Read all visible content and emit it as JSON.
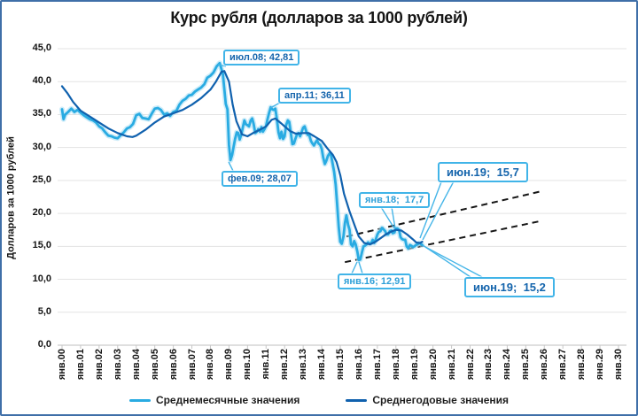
{
  "frame": {
    "border_color": "#3F6FA8"
  },
  "chart_data": {
    "type": "line",
    "title": "Курс рубля (долларов за 1000 рублей)",
    "ylabel": "Долларов за 1000 рублей",
    "xlabel": "",
    "ylim": [
      0,
      45
    ],
    "x_range_years": [
      "янв.00",
      "янв.30"
    ],
    "grid": "horizontal",
    "legend_position": "bottom",
    "y_tick_values": [
      0,
      5,
      10,
      15,
      20,
      25,
      30,
      35,
      40,
      45
    ],
    "y_tick_labels": [
      "0,0",
      "5,0",
      "10,0",
      "15,0",
      "20,0",
      "25,0",
      "30,0",
      "35,0",
      "40,0",
      "45,0"
    ],
    "x_tick_labels": [
      "янв.00",
      "янв.01",
      "янв.02",
      "янв.03",
      "янв.04",
      "янв.05",
      "янв.06",
      "янв.07",
      "янв.08",
      "янв.09",
      "янв.10",
      "янв.11",
      "янв.12",
      "янв.13",
      "янв.14",
      "янв.15",
      "янв.16",
      "янв.17",
      "янв.18",
      "янв.19",
      "янв.20",
      "янв.21",
      "янв.22",
      "янв.23",
      "янв.24",
      "янв.25",
      "янв.26",
      "янв.27",
      "янв.28",
      "янв.29",
      "янв.30"
    ],
    "series": [
      {
        "name": "Среднемесячные значения",
        "color": "#29ABE2",
        "halo_color": "#ABDFF5",
        "points": [
          [
            0.0,
            35.8
          ],
          [
            0.08,
            34.3
          ],
          [
            0.17,
            35.0
          ],
          [
            0.33,
            35.4
          ],
          [
            0.5,
            35.9
          ],
          [
            0.67,
            35.4
          ],
          [
            0.83,
            35.7
          ],
          [
            1.0,
            35.3
          ],
          [
            1.17,
            34.9
          ],
          [
            1.33,
            34.6
          ],
          [
            1.5,
            34.3
          ],
          [
            1.67,
            34.1
          ],
          [
            1.83,
            33.8
          ],
          [
            2.0,
            33.2
          ],
          [
            2.17,
            32.9
          ],
          [
            2.33,
            32.3
          ],
          [
            2.5,
            31.8
          ],
          [
            2.67,
            31.7
          ],
          [
            2.83,
            31.5
          ],
          [
            3.0,
            31.4
          ],
          [
            3.17,
            31.9
          ],
          [
            3.33,
            32.3
          ],
          [
            3.5,
            32.9
          ],
          [
            3.67,
            33.1
          ],
          [
            3.83,
            33.6
          ],
          [
            4.0,
            34.9
          ],
          [
            4.17,
            35.1
          ],
          [
            4.33,
            34.5
          ],
          [
            4.5,
            34.4
          ],
          [
            4.67,
            34.3
          ],
          [
            4.83,
            35.1
          ],
          [
            5.0,
            35.9
          ],
          [
            5.17,
            36.0
          ],
          [
            5.33,
            35.7
          ],
          [
            5.5,
            35.0
          ],
          [
            5.67,
            35.2
          ],
          [
            5.83,
            34.8
          ],
          [
            6.0,
            35.4
          ],
          [
            6.17,
            35.6
          ],
          [
            6.33,
            36.5
          ],
          [
            6.5,
            37.1
          ],
          [
            6.67,
            37.4
          ],
          [
            6.83,
            37.9
          ],
          [
            7.0,
            38.0
          ],
          [
            7.17,
            38.5
          ],
          [
            7.33,
            38.8
          ],
          [
            7.5,
            39.1
          ],
          [
            7.67,
            39.6
          ],
          [
            7.83,
            40.6
          ],
          [
            8.0,
            40.9
          ],
          [
            8.17,
            41.4
          ],
          [
            8.33,
            42.3
          ],
          [
            8.5,
            42.81
          ],
          [
            8.67,
            41.2
          ],
          [
            8.83,
            36.6
          ],
          [
            8.92,
            35.8
          ],
          [
            9.0,
            30.4
          ],
          [
            9.08,
            28.07
          ],
          [
            9.17,
            28.9
          ],
          [
            9.25,
            30.1
          ],
          [
            9.33,
            31.3
          ],
          [
            9.42,
            32.3
          ],
          [
            9.5,
            32.2
          ],
          [
            9.58,
            31.2
          ],
          [
            9.67,
            32.0
          ],
          [
            9.75,
            33.1
          ],
          [
            9.83,
            34.1
          ],
          [
            9.92,
            33.5
          ],
          [
            10.0,
            33.4
          ],
          [
            10.08,
            33.2
          ],
          [
            10.17,
            34.1
          ],
          [
            10.25,
            34.4
          ],
          [
            10.33,
            33.6
          ],
          [
            10.42,
            32.2
          ],
          [
            10.5,
            32.4
          ],
          [
            10.58,
            32.8
          ],
          [
            10.67,
            32.4
          ],
          [
            10.75,
            33.1
          ],
          [
            10.83,
            32.4
          ],
          [
            10.92,
            32.8
          ],
          [
            11.0,
            33.3
          ],
          [
            11.08,
            34.3
          ],
          [
            11.17,
            35.3
          ],
          [
            11.25,
            36.11
          ],
          [
            11.33,
            35.8
          ],
          [
            11.42,
            35.7
          ],
          [
            11.5,
            35.9
          ],
          [
            11.58,
            34.4
          ],
          [
            11.67,
            32.3
          ],
          [
            11.75,
            31.4
          ],
          [
            11.83,
            32.4
          ],
          [
            11.92,
            31.3
          ],
          [
            12.0,
            31.7
          ],
          [
            12.08,
            33.4
          ],
          [
            12.17,
            34.1
          ],
          [
            12.25,
            33.9
          ],
          [
            12.33,
            32.3
          ],
          [
            12.42,
            30.5
          ],
          [
            12.5,
            30.6
          ],
          [
            12.58,
            31.3
          ],
          [
            12.67,
            32.0
          ],
          [
            12.75,
            32.2
          ],
          [
            12.83,
            31.7
          ],
          [
            12.92,
            32.4
          ],
          [
            13.0,
            33.0
          ],
          [
            13.08,
            33.2
          ],
          [
            13.17,
            32.4
          ],
          [
            13.25,
            31.9
          ],
          [
            13.33,
            31.9
          ],
          [
            13.42,
            31.0
          ],
          [
            13.5,
            30.6
          ],
          [
            13.58,
            30.3
          ],
          [
            13.67,
            30.8
          ],
          [
            13.75,
            31.1
          ],
          [
            13.83,
            30.6
          ],
          [
            13.92,
            30.4
          ],
          [
            14.0,
            29.8
          ],
          [
            14.08,
            28.5
          ],
          [
            14.17,
            27.5
          ],
          [
            14.25,
            28.0
          ],
          [
            14.33,
            28.7
          ],
          [
            14.42,
            29.1
          ],
          [
            14.5,
            28.9
          ],
          [
            14.58,
            27.7
          ],
          [
            14.67,
            26.3
          ],
          [
            14.75,
            24.4
          ],
          [
            14.83,
            21.5
          ],
          [
            14.92,
            17.9
          ],
          [
            15.0,
            15.7
          ],
          [
            15.08,
            15.4
          ],
          [
            15.17,
            16.5
          ],
          [
            15.25,
            18.5
          ],
          [
            15.33,
            19.7
          ],
          [
            15.42,
            18.3
          ],
          [
            15.5,
            17.5
          ],
          [
            15.58,
            15.3
          ],
          [
            15.67,
            15.0
          ],
          [
            15.75,
            15.8
          ],
          [
            15.83,
            15.3
          ],
          [
            15.92,
            14.2
          ],
          [
            16.0,
            12.91
          ],
          [
            16.08,
            13.0
          ],
          [
            16.17,
            14.1
          ],
          [
            16.25,
            15.0
          ],
          [
            16.33,
            15.1
          ],
          [
            16.42,
            15.3
          ],
          [
            16.5,
            15.6
          ],
          [
            16.58,
            15.4
          ],
          [
            16.67,
            15.5
          ],
          [
            16.75,
            16.0
          ],
          [
            16.83,
            15.5
          ],
          [
            16.92,
            16.1
          ],
          [
            17.0,
            16.8
          ],
          [
            17.08,
            17.2
          ],
          [
            17.17,
            17.3
          ],
          [
            17.25,
            17.8
          ],
          [
            17.33,
            17.6
          ],
          [
            17.42,
            17.3
          ],
          [
            17.5,
            16.8
          ],
          [
            17.58,
            16.8
          ],
          [
            17.67,
            17.3
          ],
          [
            17.75,
            17.4
          ],
          [
            17.83,
            17.0
          ],
          [
            17.92,
            17.1
          ],
          [
            18.0,
            17.7
          ],
          [
            18.08,
            17.7
          ],
          [
            18.17,
            17.5
          ],
          [
            18.25,
            16.4
          ],
          [
            18.33,
            16.1
          ],
          [
            18.42,
            16.0
          ],
          [
            18.5,
            16.0
          ],
          [
            18.58,
            15.0
          ],
          [
            18.67,
            14.7
          ],
          [
            18.75,
            15.2
          ],
          [
            18.83,
            15.1
          ],
          [
            18.92,
            14.9
          ],
          [
            19.0,
            15.0
          ],
          [
            19.08,
            15.2
          ],
          [
            19.17,
            15.3
          ],
          [
            19.25,
            15.5
          ],
          [
            19.33,
            15.4
          ],
          [
            19.42,
            15.2
          ]
        ]
      },
      {
        "name": "Среднегодовые значения",
        "color": "#1061AE",
        "points": [
          [
            0.0,
            39.3
          ],
          [
            0.3,
            38.2
          ],
          [
            0.6,
            36.9
          ],
          [
            1.0,
            35.6
          ],
          [
            1.5,
            34.7
          ],
          [
            2.0,
            33.8
          ],
          [
            2.5,
            32.9
          ],
          [
            3.0,
            32.2
          ],
          [
            3.5,
            31.7
          ],
          [
            3.8,
            31.6
          ],
          [
            4.0,
            31.8
          ],
          [
            4.5,
            32.7
          ],
          [
            5.0,
            33.8
          ],
          [
            5.5,
            34.7
          ],
          [
            6.0,
            35.2
          ],
          [
            6.5,
            35.7
          ],
          [
            7.0,
            36.5
          ],
          [
            7.5,
            37.5
          ],
          [
            8.0,
            38.8
          ],
          [
            8.3,
            40.0
          ],
          [
            8.6,
            41.5
          ],
          [
            8.75,
            41.6
          ],
          [
            9.0,
            40.0
          ],
          [
            9.2,
            36.5
          ],
          [
            9.4,
            34.0
          ],
          [
            9.7,
            32.0
          ],
          [
            10.0,
            31.7
          ],
          [
            10.3,
            32.2
          ],
          [
            10.6,
            32.6
          ],
          [
            11.0,
            33.2
          ],
          [
            11.3,
            34.2
          ],
          [
            11.5,
            34.4
          ],
          [
            11.8,
            33.7
          ],
          [
            12.0,
            33.2
          ],
          [
            12.3,
            32.5
          ],
          [
            12.6,
            32.1
          ],
          [
            13.0,
            32.2
          ],
          [
            13.3,
            32.2
          ],
          [
            13.6,
            31.7
          ],
          [
            14.0,
            31.0
          ],
          [
            14.3,
            29.9
          ],
          [
            14.6,
            28.9
          ],
          [
            14.8,
            27.8
          ],
          [
            15.0,
            25.8
          ],
          [
            15.2,
            23.0
          ],
          [
            15.5,
            20.3
          ],
          [
            15.8,
            18.0
          ],
          [
            16.0,
            16.5
          ],
          [
            16.3,
            15.5
          ],
          [
            16.6,
            15.3
          ],
          [
            16.9,
            15.7
          ],
          [
            17.2,
            16.3
          ],
          [
            17.5,
            16.9
          ],
          [
            17.8,
            17.3
          ],
          [
            18.0,
            17.5
          ],
          [
            18.3,
            17.4
          ],
          [
            18.6,
            16.8
          ],
          [
            18.9,
            16.1
          ],
          [
            19.1,
            15.6
          ],
          [
            19.3,
            15.5
          ],
          [
            19.42,
            15.7
          ]
        ]
      }
    ],
    "trend_lines": [
      {
        "name": "upper-trend",
        "style": "dashed",
        "color": "#161616",
        "points": [
          [
            15.35,
            16.5
          ],
          [
            25.9,
            23.4
          ]
        ]
      },
      {
        "name": "lower-trend",
        "style": "dashed",
        "color": "#161616",
        "points": [
          [
            15.25,
            12.6
          ],
          [
            25.75,
            18.8
          ]
        ]
      }
    ],
    "annotations": [
      {
        "id": "jul08",
        "label": "июл.08; 42,81",
        "x": "июл.08",
        "year": 8.5,
        "value": 42.81,
        "size": "small",
        "variant": "navy"
      },
      {
        "id": "feb09",
        "label": "фев.09; 28,07",
        "x": "фев.09",
        "year": 9.08,
        "value": 28.07,
        "size": "small",
        "variant": "navy"
      },
      {
        "id": "apr11",
        "label": "апр.11; 36,11",
        "x": "апр.11",
        "year": 11.25,
        "value": 36.11,
        "size": "small",
        "variant": "navy"
      },
      {
        "id": "jan18",
        "label": "янв.18;  17,7",
        "x": "янв.18",
        "year": 18.0,
        "value": 17.7,
        "size": "small",
        "variant": "light"
      },
      {
        "id": "jan16",
        "label": "янв.16; 12,91",
        "x": "янв.16",
        "year": 16.0,
        "value": 12.91,
        "size": "small",
        "variant": "light"
      },
      {
        "id": "jun19a",
        "label": "июн.19;  15,7",
        "x": "июн.19",
        "year": 19.42,
        "value": 15.7,
        "size": "large",
        "variant": "navy"
      },
      {
        "id": "jun19b",
        "label": "июн.19;  15,2",
        "x": "июн.19",
        "year": 19.42,
        "value": 15.2,
        "size": "large",
        "variant": "navy"
      }
    ],
    "legend": [
      {
        "label": "Среднемесячные значения",
        "color": "#29ABE2"
      },
      {
        "label": "Среднегодовые значения",
        "color": "#1061AE"
      }
    ]
  }
}
